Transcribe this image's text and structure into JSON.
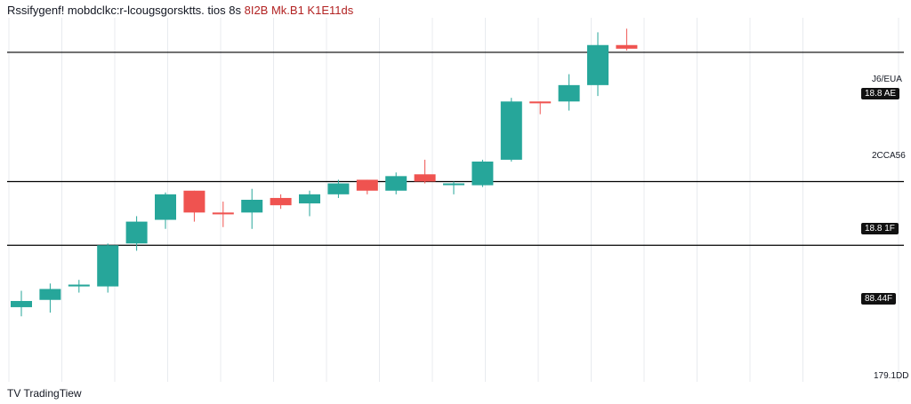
{
  "title": {
    "text": "Rssifygenf! mobdclkc:r-lcougsgorsktts. tios 8s",
    "highlight": "8I2B Mk.B1 K1E11ds"
  },
  "footer": {
    "brand": "TV TradingTiew"
  },
  "price_labels": [
    "J6/EUA",
    "2CCA56",
    "179.1DD"
  ],
  "level_badges": [
    "18.8 AE",
    "18.8 1F",
    "88.44F"
  ],
  "colors": {
    "up": "#26a69a",
    "down": "#ef5350",
    "grid": "#e8ebef",
    "level": "#000000",
    "wick_up": "#26a69a",
    "wick_down": "#ef5350"
  },
  "chart_data": {
    "type": "candlestick",
    "title": "Rssifygenf! mobdclkc:r-lcougsgorsktts. tios 8s 8I2B Mk.B1 K1E11ds",
    "ylim": [
      0,
      100
    ],
    "candles": [
      {
        "o": 20.5,
        "h": 25.0,
        "l": 18.0,
        "c": 22.2
      },
      {
        "o": 22.5,
        "h": 27.0,
        "l": 19.0,
        "c": 25.5
      },
      {
        "o": 26.2,
        "h": 28.0,
        "l": 24.5,
        "c": 26.7
      },
      {
        "o": 26.2,
        "h": 38.0,
        "l": 24.5,
        "c": 37.5
      },
      {
        "o": 38.0,
        "h": 45.5,
        "l": 36.0,
        "c": 44.0
      },
      {
        "o": 44.5,
        "h": 52.0,
        "l": 42.0,
        "c": 51.5
      },
      {
        "o": 52.5,
        "h": 52.5,
        "l": 44.0,
        "c": 46.5
      },
      {
        "o": 46.5,
        "h": 49.5,
        "l": 42.5,
        "c": 46.0
      },
      {
        "o": 46.5,
        "h": 53.0,
        "l": 42.0,
        "c": 50.0
      },
      {
        "o": 50.5,
        "h": 51.5,
        "l": 47.5,
        "c": 48.5
      },
      {
        "o": 49.0,
        "h": 52.5,
        "l": 45.5,
        "c": 51.5
      },
      {
        "o": 51.5,
        "h": 55.5,
        "l": 50.5,
        "c": 54.5
      },
      {
        "o": 55.5,
        "h": 55.5,
        "l": 51.5,
        "c": 52.5
      },
      {
        "o": 52.5,
        "h": 57.5,
        "l": 51.5,
        "c": 56.5
      },
      {
        "o": 57.0,
        "h": 61.0,
        "l": 54.5,
        "c": 55.0
      },
      {
        "o": 54.5,
        "h": 55.0,
        "l": 51.5,
        "c": 54.5
      },
      {
        "o": 54.0,
        "h": 61.0,
        "l": 53.5,
        "c": 60.5
      },
      {
        "o": 61.0,
        "h": 78.0,
        "l": 60.5,
        "c": 77.0
      },
      {
        "o": 77.0,
        "h": 77.0,
        "l": 73.5,
        "c": 76.5
      },
      {
        "o": 77.0,
        "h": 84.5,
        "l": 74.5,
        "c": 81.5
      },
      {
        "o": 81.5,
        "h": 96.0,
        "l": 78.5,
        "c": 92.5
      },
      {
        "o": 92.5,
        "h": 97.0,
        "l": 91.0,
        "c": 91.5
      }
    ],
    "levels": [
      90.5,
      55.0,
      37.5
    ]
  }
}
